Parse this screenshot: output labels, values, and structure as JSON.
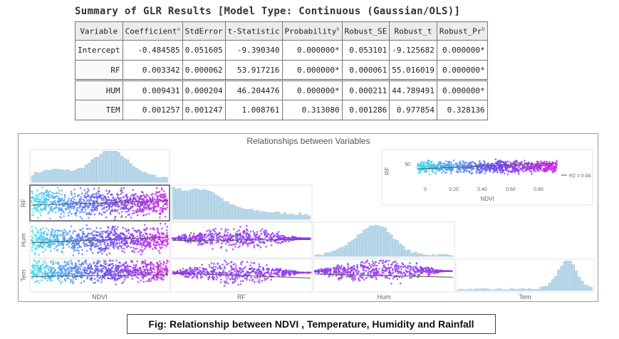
{
  "summary_title": "Summary of GLR Results [Model Type: Continuous (Gaussian/OLS)]",
  "table": {
    "headers": [
      "Variable",
      "Coefficient",
      "StdError",
      "t-Statistic",
      "Probability",
      "Robust_SE",
      "Robust_t",
      "Robust_Pr"
    ],
    "header_marks": [
      "",
      "a",
      "",
      "",
      "b",
      "",
      "",
      "b"
    ],
    "rows": [
      [
        "Intercept",
        "-0.484585",
        "0.051605",
        "-9.390340",
        "0.000000*",
        "0.053101",
        "-9.125682",
        "0.000000*"
      ],
      [
        "RF",
        "0.003342",
        "0.000062",
        "53.917216",
        "0.000000*",
        "0.000061",
        "55.016019",
        "0.000000*"
      ],
      [
        "HUM",
        "0.009431",
        "0.000204",
        "46.204476",
        "0.000000*",
        "0.000211",
        "44.789491",
        "0.000000*"
      ],
      [
        "TEM",
        "0.001257",
        "0.001247",
        "1.008761",
        "0.313080",
        "0.001286",
        "0.977854",
        "0.328136"
      ]
    ]
  },
  "figure": {
    "title": "Relationships between Variables",
    "row_labels": [
      "RF",
      "Hum",
      "Tem"
    ],
    "col_labels": [
      "NDVI",
      "RF",
      "Hum",
      "Tem"
    ],
    "inset": {
      "y_label": "RF",
      "y_tick": "50",
      "x_ticks": [
        "0",
        "0.20",
        "0.40",
        "0.60",
        "0.80"
      ],
      "x_label": "NDVI",
      "legend": "R2 = 0.04"
    },
    "colors": {
      "hist": "#b9d8ea",
      "hist_edge": "#8fb9d3",
      "grad_start": "#3fe0f0",
      "grad_mid": "#6a4cf0",
      "grad_end": "#d020e8",
      "trend": "#555555"
    }
  },
  "caption": "Fig: Relationship between NDVI , Temperature, Humidity and Rainfall"
}
